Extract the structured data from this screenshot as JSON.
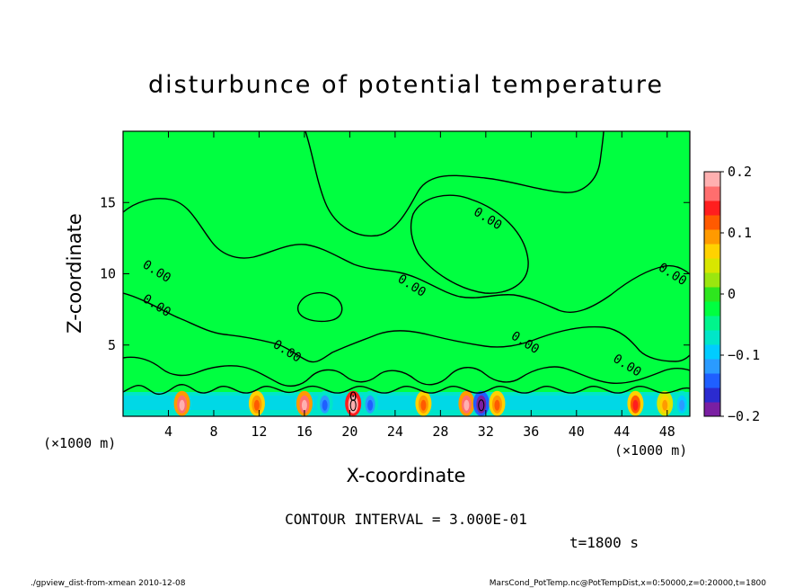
{
  "chart_data": {
    "type": "heatmap",
    "title": "disturbunce of potential temperature",
    "xlabel": "X-coordinate",
    "ylabel": "Z-coordinate",
    "x_unit_left": "(×1000 m)",
    "x_unit_right": "(×1000 m)",
    "xlim": [
      0,
      50
    ],
    "ylim": [
      0,
      20
    ],
    "x_ticks": [
      4,
      8,
      12,
      16,
      20,
      24,
      28,
      32,
      36,
      40,
      44,
      48
    ],
    "y_ticks": [
      5,
      10,
      15
    ],
    "contour_interval_text": "CONTOUR INTERVAL = 3.000E-01",
    "time_text": "t=1800 s",
    "contour_labels": [
      {
        "text": "0.00",
        "x": 3.0,
        "z": 10.2
      },
      {
        "text": "0.00",
        "x": 3.0,
        "z": 7.8
      },
      {
        "text": "0.00",
        "x": 14.5,
        "z": 4.6
      },
      {
        "text": "0.00",
        "x": 25.5,
        "z": 9.2
      },
      {
        "text": "0.00",
        "x": 32.2,
        "z": 13.9
      },
      {
        "text": "0.00",
        "x": 35.5,
        "z": 5.2
      },
      {
        "text": "0.00",
        "x": 44.5,
        "z": 3.6
      },
      {
        "text": "0.00",
        "x": 48.5,
        "z": 10.0
      },
      {
        "text": "0",
        "x": 20.3,
        "z": 1.4
      }
    ],
    "colorbar": {
      "min": -0.2,
      "max": 0.2,
      "tick_labels": [
        "0.2",
        "0.1",
        "0",
        "−0.1",
        "−0.2"
      ],
      "tick_values": [
        0.2,
        0.1,
        0,
        -0.1,
        -0.2
      ],
      "colors": [
        "#7a1fa2",
        "#2b2bd0",
        "#1f5fff",
        "#2a9bff",
        "#00ccff",
        "#00e6c8",
        "#00f58c",
        "#00ff40",
        "#2ee61e",
        "#9be60f",
        "#d8e600",
        "#ffd200",
        "#ff9a00",
        "#ff5a00",
        "#ff1e1e",
        "#ff6e6e",
        "#ffb0b0"
      ]
    },
    "background_value": 0.0,
    "surface_anomalies": [
      {
        "x": 5.2,
        "value": 0.2
      },
      {
        "x": 11.8,
        "value": 0.12
      },
      {
        "x": 16.0,
        "value": 0.2
      },
      {
        "x": 17.8,
        "value": -0.15
      },
      {
        "x": 20.3,
        "value": 0.3
      },
      {
        "x": 21.8,
        "value": -0.15
      },
      {
        "x": 26.5,
        "value": 0.12
      },
      {
        "x": 30.3,
        "value": 0.2
      },
      {
        "x": 31.6,
        "value": -0.3
      },
      {
        "x": 33.0,
        "value": 0.12
      },
      {
        "x": 45.2,
        "value": 0.15
      },
      {
        "x": 47.8,
        "value": 0.1
      },
      {
        "x": 49.3,
        "value": -0.12
      }
    ]
  },
  "footer": {
    "left": "./gpview_dist-from-xmean  2010-12-08",
    "right": "MarsCond_PotTemp.nc@PotTempDist,x=0:50000,z=0:20000,t=1800"
  }
}
